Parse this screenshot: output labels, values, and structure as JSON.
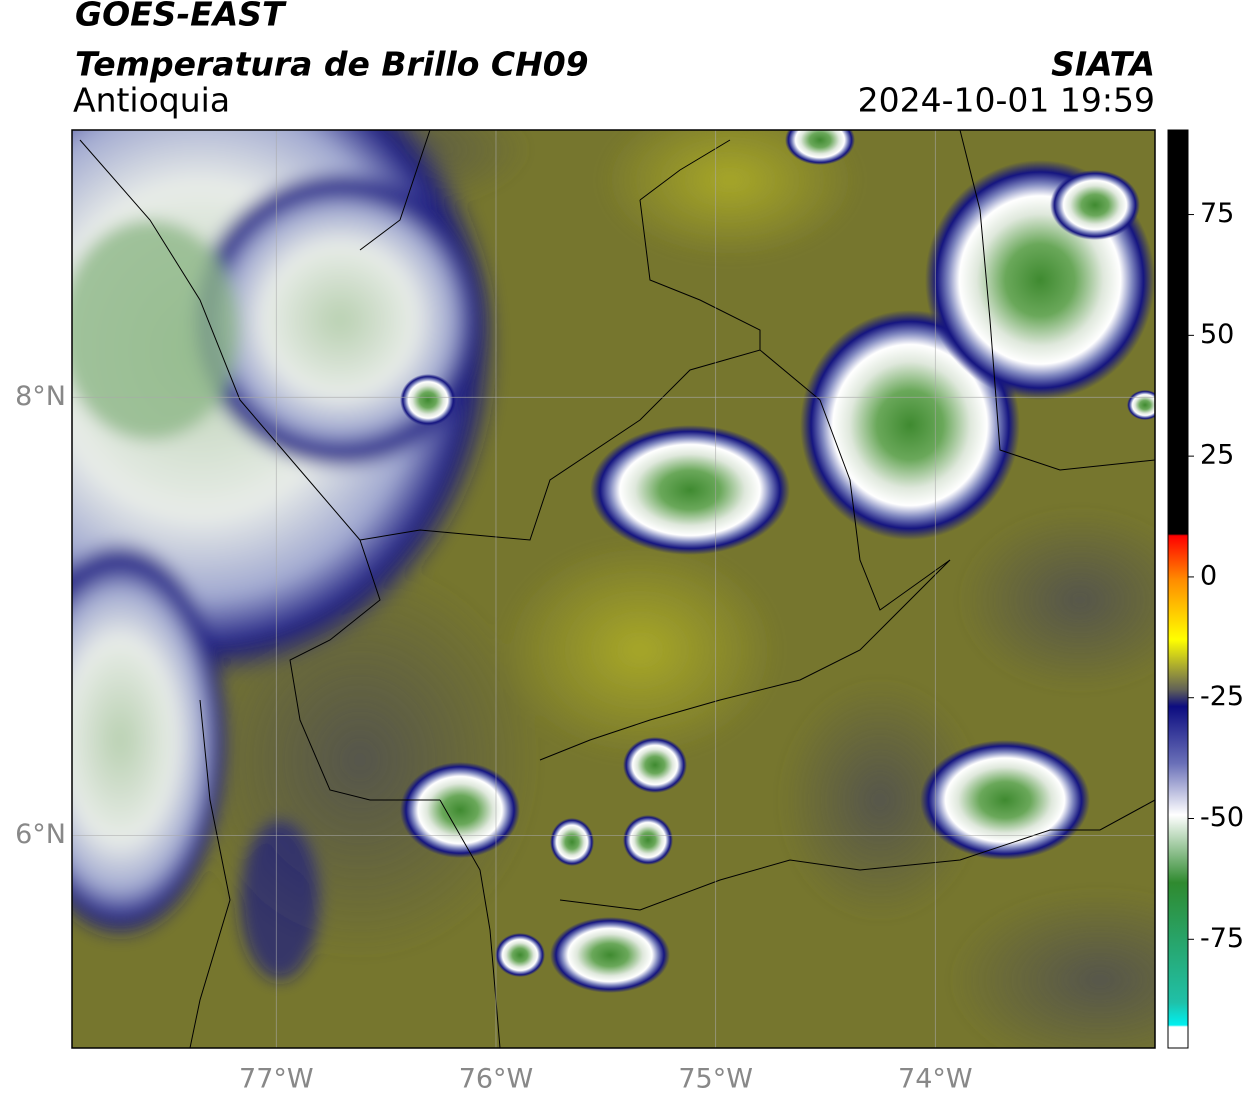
{
  "header": {
    "title": "GOES-EAST",
    "subtitle": "Temperatura de Brillo CH09",
    "region": "Antioquia",
    "source": "SIATA",
    "datetime": "2024-10-01 19:59"
  },
  "map": {
    "xlim": [
      -77.93,
      -73.0
    ],
    "ylim": [
      5.03,
      9.22
    ],
    "xticks": [
      {
        "value": -77,
        "label": "77°W"
      },
      {
        "value": -76,
        "label": "76°W"
      },
      {
        "value": -75,
        "label": "75°W"
      },
      {
        "value": -74,
        "label": "74°W"
      }
    ],
    "yticks": [
      {
        "value": 6,
        "label": "6°N"
      },
      {
        "value": 8,
        "label": "8°N"
      }
    ],
    "grid": true
  },
  "colorbar": {
    "lim": [
      -97.5,
      92.5
    ],
    "ticks": [
      75,
      50,
      25,
      0,
      -25,
      -50,
      -75
    ]
  }
}
